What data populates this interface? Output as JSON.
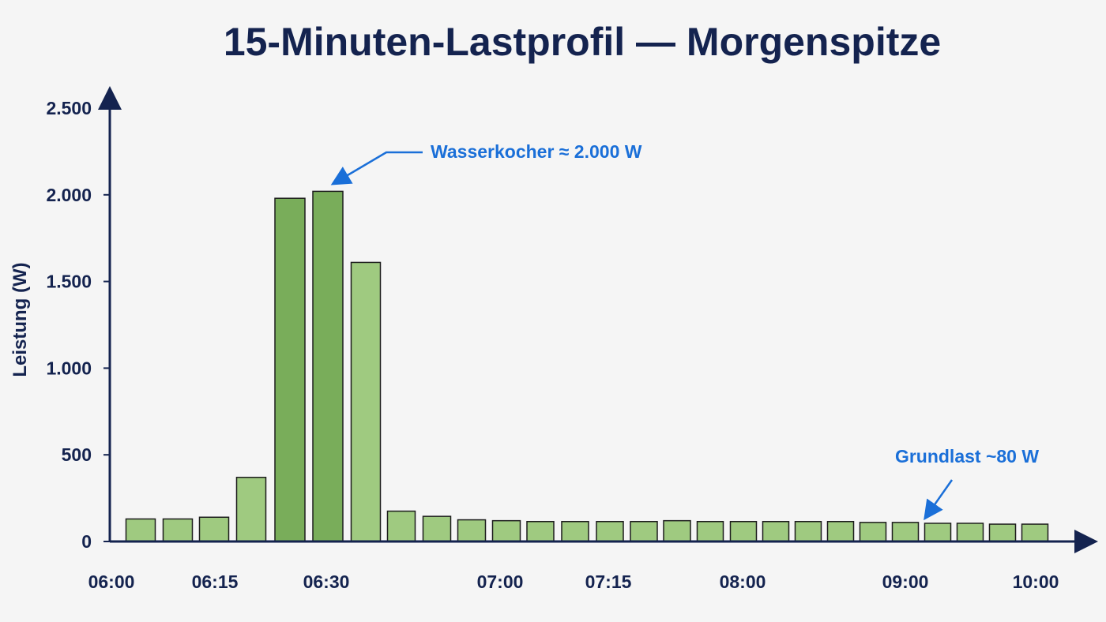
{
  "chart_data": {
    "type": "bar",
    "title": "15-Minuten-Lastprofil — Morgenspitze",
    "ylabel": "Leistung (W)",
    "xlabel": "",
    "ylim": [
      0,
      2500
    ],
    "yticks": [
      0,
      500,
      1000,
      1500,
      2000,
      2500
    ],
    "ytick_labels": [
      "0",
      "500",
      "1.000",
      "1.500",
      "2.000",
      "2.500"
    ],
    "xtick_labels": [
      "06:00",
      "06:15",
      "06:30",
      "07:00",
      "07:15",
      "08:00",
      "09:00",
      "10:00"
    ],
    "values": [
      130,
      130,
      140,
      370,
      1980,
      2020,
      1610,
      175,
      145,
      125,
      120,
      115,
      115,
      115,
      115,
      120,
      115,
      115,
      115,
      115,
      115,
      110,
      110,
      105,
      105,
      100,
      100
    ],
    "grid": false,
    "colors": {
      "bar": "#9fca80",
      "bar_highlight": "#79ad5a",
      "bar_edge": "#1c1c1c",
      "axis": "#14234f",
      "text": "#14234f",
      "annotation": "#1a6fd8"
    },
    "annotations": [
      {
        "text": "Wasserkocher ≈ 2.000 W",
        "target_index": 5
      },
      {
        "text": "Grundlast ~80 W",
        "target_index": 22
      }
    ]
  }
}
